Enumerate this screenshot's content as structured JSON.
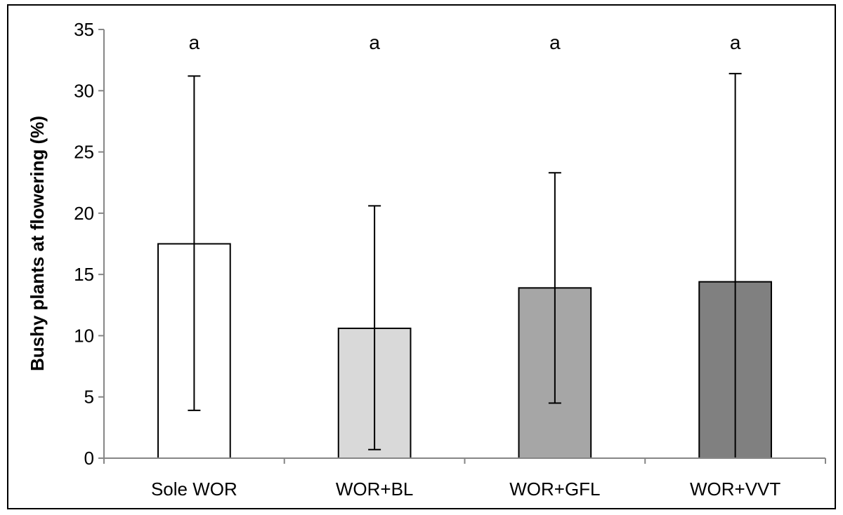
{
  "chart_data": {
    "type": "bar",
    "title": "",
    "xlabel": "",
    "ylabel": "Bushy plants at flowering (%)",
    "ylim": [
      0,
      35
    ],
    "yticks": [
      0,
      5,
      10,
      15,
      20,
      25,
      30,
      35
    ],
    "grid": false,
    "legend": "none",
    "categories": [
      "Sole WOR",
      "WOR+BL",
      "WOR+GFL",
      "WOR+VVT"
    ],
    "values": [
      17.5,
      10.6,
      13.9,
      14.4
    ],
    "error_low": [
      3.9,
      0.7,
      4.5,
      0.0
    ],
    "error_high": [
      31.2,
      20.6,
      23.3,
      31.4
    ],
    "significance": [
      "a",
      "a",
      "a",
      "a"
    ],
    "bar_colors": [
      "#ffffff",
      "#d9d9d9",
      "#a6a6a6",
      "#808080"
    ],
    "edge_color": "#000000",
    "frame_color": "#000000",
    "axis_color": "#868686"
  }
}
